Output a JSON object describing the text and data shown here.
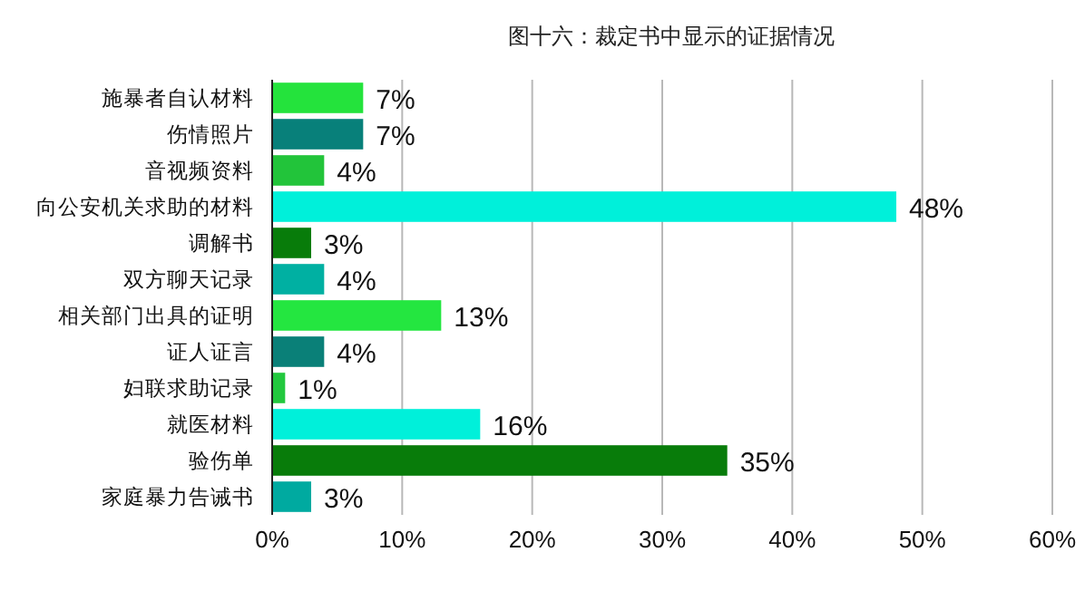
{
  "chart_data": {
    "type": "bar",
    "orientation": "horizontal",
    "title": "图十六：裁定书中显示的证据情况",
    "categories": [
      "施暴者自认材料",
      "伤情照片",
      "音视频资料",
      "向公安机关求助的材料",
      "调解书",
      "双方聊天记录",
      "相关部门出具的证明",
      "证人证言",
      "妇联求助记录",
      "就医材料",
      "验伤单",
      "家庭暴力告诫书"
    ],
    "values": [
      7,
      7,
      4,
      48,
      3,
      4,
      13,
      4,
      1,
      16,
      35,
      3
    ],
    "value_labels": [
      "7%",
      "7%",
      "4%",
      "48%",
      "3%",
      "4%",
      "13%",
      "4%",
      "1%",
      "16%",
      "35%",
      "3%"
    ],
    "colors": [
      "#24e33c",
      "#08807a",
      "#22c43a",
      "#00f0da",
      "#087c0a",
      "#00b0a2",
      "#24e640",
      "#0a8078",
      "#22c83e",
      "#00f0da",
      "#087c0a",
      "#00aaa0"
    ],
    "xlim": [
      0,
      60
    ],
    "xticks": [
      {
        "value": 0,
        "label": "0%"
      },
      {
        "value": 10,
        "label": "10%"
      },
      {
        "value": 20,
        "label": "20%"
      },
      {
        "value": 30,
        "label": "30%"
      },
      {
        "value": 40,
        "label": "40%"
      },
      {
        "value": 50,
        "label": "50%"
      },
      {
        "value": 60,
        "label": "60%"
      }
    ],
    "grid": "x"
  }
}
